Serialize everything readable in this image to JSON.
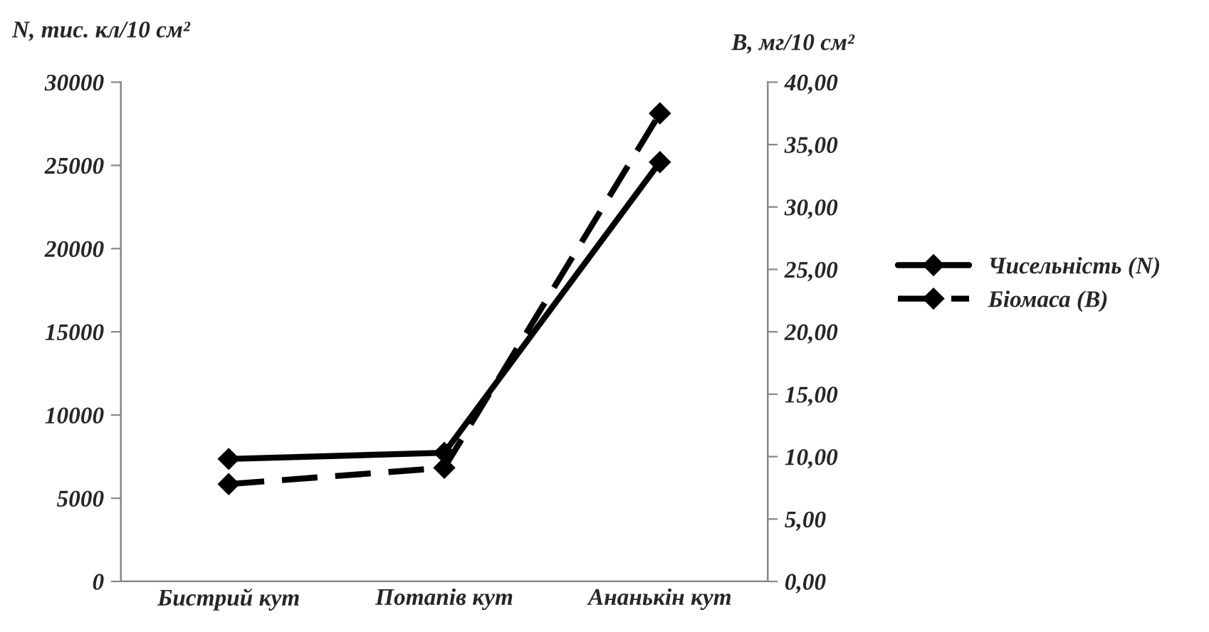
{
  "chart_data": {
    "type": "line",
    "categories": [
      "Бистрий кут",
      "Потапів кут",
      "Ананькін кут"
    ],
    "ylabel": "N, тис. кл/10 см²",
    "y2label": "B, мг/10 см²",
    "ylim": [
      0,
      30000
    ],
    "yticks": [
      0,
      5000,
      10000,
      15000,
      20000,
      25000,
      30000
    ],
    "y2lim": [
      0,
      40
    ],
    "y2ticks": [
      {
        "value": 0,
        "label": "0,00"
      },
      {
        "value": 5,
        "label": "5,00"
      },
      {
        "value": 10,
        "label": "10,00"
      },
      {
        "value": 15,
        "label": "15,00"
      },
      {
        "value": 20,
        "label": "20,00"
      },
      {
        "value": 25,
        "label": "25,00"
      },
      {
        "value": 30,
        "label": "30,00"
      },
      {
        "value": 35,
        "label": "35,00"
      },
      {
        "value": 40,
        "label": "40,00"
      }
    ],
    "series": [
      {
        "name": "Чисельність (N)",
        "color": "#000000",
        "values": [
          7360,
          7730,
          25200
        ],
        "line_style": "solid"
      },
      {
        "name": "Біомаса (B)",
        "color": "#000000",
        "values": [
          7.8,
          9.1,
          37.5
        ],
        "axis": "y2",
        "line_style": "dashed"
      }
    ],
    "marker": "diamond",
    "legend": "right",
    "grid": false
  }
}
